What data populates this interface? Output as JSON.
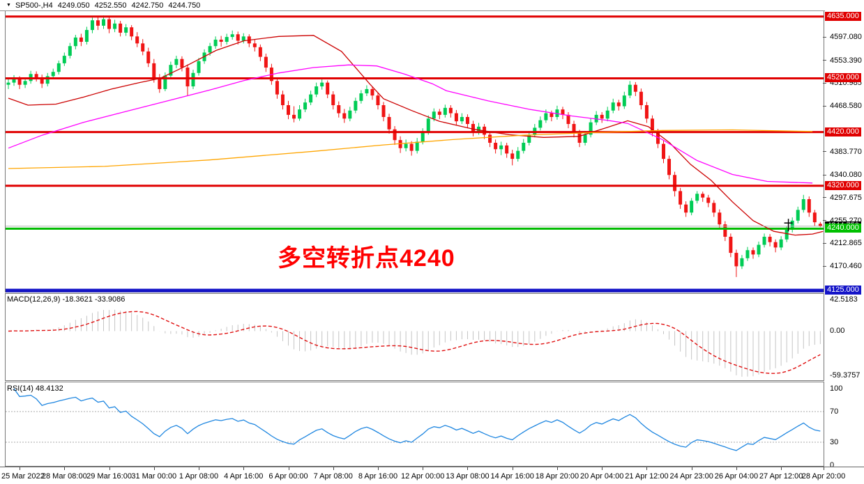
{
  "title_bar": {
    "dropdown_icon": "▼",
    "symbol_period": "SP500-,H4",
    "open": "4249.050",
    "high": "4252.550",
    "low": "4242.750",
    "close": "4244.750"
  },
  "annotation": {
    "text": "多空转折点4240",
    "color": "#FF0000"
  },
  "price_axis": {
    "plain_labels": [
      {
        "text": "4597.080",
        "price": 4597.08
      },
      {
        "text": "4553.390",
        "price": 4553.39
      },
      {
        "text": "4510.985",
        "price": 4510.985
      },
      {
        "text": "4468.580",
        "price": 4468.58
      },
      {
        "text": "4383.770",
        "price": 4383.77
      },
      {
        "text": "4340.080",
        "price": 4340.08
      },
      {
        "text": "4297.675",
        "price": 4297.675
      },
      {
        "text": "4255.270",
        "price": 4255.27
      },
      {
        "text": "4212.865",
        "price": 4212.865
      },
      {
        "text": "4170.460",
        "price": 4170.46
      }
    ],
    "marker_labels": [
      {
        "text": "4244.750",
        "price": 4244.75,
        "bg": "#000000"
      },
      {
        "text": "4635.000",
        "price": 4635,
        "bg": "#E00000"
      },
      {
        "text": "4520.000",
        "price": 4520,
        "bg": "#E00000"
      },
      {
        "text": "4420.000",
        "price": 4420,
        "bg": "#E00000"
      },
      {
        "text": "4320.000",
        "price": 4320,
        "bg": "#E00000"
      },
      {
        "text": "4240.000",
        "price": 4240,
        "bg": "#00C000"
      },
      {
        "text": "4125.000",
        "price": 4125,
        "bg": "#1414C8"
      }
    ]
  },
  "indicators": {
    "macd": {
      "label": "MACD(12,26,9) -18.3621 -33.9086",
      "fast": 12,
      "slow": 26,
      "signal": 9,
      "value": -18.3621,
      "signal_value": -33.9086,
      "axis_labels": [
        {
          "text": "42.5183",
          "value": 42.5183
        },
        {
          "text": "0.00",
          "value": 0
        },
        {
          "text": "-59.3757",
          "value": -59.3757
        }
      ],
      "ymax": 42.5183,
      "ymin": -59.3757,
      "hist_color": "#C4C4C4",
      "signal_color": "#E01010"
    },
    "rsi": {
      "label": "RSI(14) 48.4132",
      "period": 14,
      "value": 48.4132,
      "axis_labels": [
        {
          "text": "100",
          "value": 100
        },
        {
          "text": "70",
          "value": 70
        },
        {
          "text": "30",
          "value": 30
        },
        {
          "text": "0",
          "value": 0
        }
      ],
      "levels": [
        70,
        30
      ],
      "line_color": "#1E86E0",
      "level_color": "#A8A8A8"
    }
  },
  "time_axis": {
    "labels": [
      {
        "text": "25 Mar 2022",
        "bar": 2
      },
      {
        "text": "28 Mar 08:00",
        "bar": 10
      },
      {
        "text": "29 Mar 16:00",
        "bar": 18
      },
      {
        "text": "31 Mar 00:00",
        "bar": 26
      },
      {
        "text": "1 Apr 08:00",
        "bar": 34
      },
      {
        "text": "4 Apr 16:00",
        "bar": 42
      },
      {
        "text": "6 Apr 00:00",
        "bar": 50
      },
      {
        "text": "7 Apr 08:00",
        "bar": 58
      },
      {
        "text": "8 Apr 16:00",
        "bar": 66
      },
      {
        "text": "12 Apr 00:00",
        "bar": 74
      },
      {
        "text": "13 Apr 08:00",
        "bar": 82
      },
      {
        "text": "14 Apr 16:00",
        "bar": 90
      },
      {
        "text": "18 Apr 20:00",
        "bar": 98
      },
      {
        "text": "20 Apr 04:00",
        "bar": 106
      },
      {
        "text": "21 Apr 12:00",
        "bar": 114
      },
      {
        "text": "24 Apr 23:00",
        "bar": 122
      },
      {
        "text": "26 Apr 04:00",
        "bar": 130
      },
      {
        "text": "27 Apr 12:00",
        "bar": 138
      },
      {
        "text": "28 Apr 20:00",
        "bar": 146
      }
    ]
  },
  "chart_data": {
    "type": "candlestick",
    "symbol": "SP500-",
    "timeframe": "H4",
    "ylim": [
      4122.5,
      4645.1
    ],
    "bull_color": "#00CC55",
    "bear_color": "#F01414",
    "current_price": 4244.75,
    "current_price_line_color": "#B4B4B4",
    "cross_marker": {
      "bar": 139.3,
      "price": 4248
    },
    "hlines": [
      {
        "price": 4635,
        "color": "#E00000",
        "width": 3
      },
      {
        "price": 4520,
        "color": "#E00000",
        "width": 3
      },
      {
        "price": 4420,
        "color": "#E00000",
        "width": 3
      },
      {
        "price": 4320,
        "color": "#E00000",
        "width": 3
      },
      {
        "price": 4240,
        "color": "#00BB00",
        "width": 3
      },
      {
        "price": 4125,
        "color": "#1414C8",
        "width": 5
      }
    ],
    "candles": [
      [
        4508,
        4520,
        4500,
        4512
      ],
      [
        4512,
        4526,
        4506,
        4520
      ],
      [
        4520,
        4524,
        4500,
        4508
      ],
      [
        4508,
        4521,
        4502,
        4515
      ],
      [
        4515,
        4534,
        4510,
        4528
      ],
      [
        4528,
        4533,
        4514,
        4522
      ],
      [
        4522,
        4527,
        4502,
        4510
      ],
      [
        4510,
        4530,
        4505,
        4524
      ],
      [
        4524,
        4538,
        4518,
        4532
      ],
      [
        4532,
        4553,
        4527,
        4548
      ],
      [
        4548,
        4568,
        4543,
        4562
      ],
      [
        4562,
        4586,
        4557,
        4580
      ],
      [
        4580,
        4601,
        4574,
        4596
      ],
      [
        4596,
        4603,
        4580,
        4588
      ],
      [
        4588,
        4616,
        4583,
        4610
      ],
      [
        4610,
        4633,
        4604,
        4628
      ],
      [
        4628,
        4634,
        4610,
        4618
      ],
      [
        4618,
        4637,
        4612,
        4630
      ],
      [
        4630,
        4635,
        4604,
        4612
      ],
      [
        4612,
        4629,
        4606,
        4622
      ],
      [
        4622,
        4627,
        4598,
        4605
      ],
      [
        4605,
        4621,
        4599,
        4615
      ],
      [
        4615,
        4619,
        4591,
        4598
      ],
      [
        4598,
        4606,
        4578,
        4585
      ],
      [
        4585,
        4593,
        4563,
        4570
      ],
      [
        4570,
        4577,
        4541,
        4548
      ],
      [
        4548,
        4556,
        4512,
        4520
      ],
      [
        4520,
        4528,
        4493,
        4500
      ],
      [
        4500,
        4531,
        4496,
        4525
      ],
      [
        4525,
        4551,
        4520,
        4545
      ],
      [
        4545,
        4562,
        4539,
        4556
      ],
      [
        4556,
        4561,
        4533,
        4540
      ],
      [
        4540,
        4546,
        4487,
        4505
      ],
      [
        4505,
        4536,
        4500,
        4530
      ],
      [
        4530,
        4558,
        4525,
        4552
      ],
      [
        4552,
        4574,
        4547,
        4568
      ],
      [
        4568,
        4586,
        4562,
        4580
      ],
      [
        4580,
        4598,
        4575,
        4592
      ],
      [
        4592,
        4599,
        4579,
        4588
      ],
      [
        4588,
        4603,
        4583,
        4597
      ],
      [
        4597,
        4609,
        4592,
        4602
      ],
      [
        4602,
        4607,
        4583,
        4590
      ],
      [
        4590,
        4604,
        4585,
        4598
      ],
      [
        4598,
        4602,
        4578,
        4585
      ],
      [
        4585,
        4592,
        4570,
        4578
      ],
      [
        4578,
        4583,
        4552,
        4560
      ],
      [
        4560,
        4566,
        4532,
        4540
      ],
      [
        4540,
        4547,
        4508,
        4515
      ],
      [
        4515,
        4521,
        4482,
        4490
      ],
      [
        4490,
        4497,
        4462,
        4470
      ],
      [
        4470,
        4478,
        4444,
        4452
      ],
      [
        4452,
        4468,
        4438,
        4445
      ],
      [
        4445,
        4470,
        4441,
        4462
      ],
      [
        4462,
        4482,
        4457,
        4475
      ],
      [
        4475,
        4497,
        4470,
        4490
      ],
      [
        4490,
        4512,
        4485,
        4505
      ],
      [
        4505,
        4519,
        4499,
        4512
      ],
      [
        4512,
        4516,
        4483,
        4490
      ],
      [
        4490,
        4496,
        4462,
        4470
      ],
      [
        4470,
        4477,
        4447,
        4455
      ],
      [
        4455,
        4463,
        4437,
        4445
      ],
      [
        4445,
        4467,
        4440,
        4460
      ],
      [
        4460,
        4484,
        4455,
        4478
      ],
      [
        4478,
        4498,
        4473,
        4492
      ],
      [
        4492,
        4507,
        4487,
        4500
      ],
      [
        4500,
        4505,
        4480,
        4488
      ],
      [
        4488,
        4493,
        4462,
        4470
      ],
      [
        4470,
        4476,
        4440,
        4448
      ],
      [
        4448,
        4454,
        4417,
        4425
      ],
      [
        4425,
        4431,
        4396,
        4405
      ],
      [
        4405,
        4412,
        4381,
        4390
      ],
      [
        4390,
        4406,
        4384,
        4398
      ],
      [
        4398,
        4403,
        4376,
        4385
      ],
      [
        4385,
        4409,
        4380,
        4402
      ],
      [
        4402,
        4427,
        4397,
        4420
      ],
      [
        4420,
        4451,
        4415,
        4445
      ],
      [
        4445,
        4464,
        4440,
        4458
      ],
      [
        4458,
        4463,
        4444,
        4452
      ],
      [
        4452,
        4471,
        4447,
        4465
      ],
      [
        4465,
        4470,
        4447,
        4455
      ],
      [
        4455,
        4461,
        4432,
        4440
      ],
      [
        4440,
        4455,
        4435,
        4448
      ],
      [
        4448,
        4453,
        4427,
        4435
      ],
      [
        4435,
        4441,
        4412,
        4420
      ],
      [
        4420,
        4437,
        4415,
        4430
      ],
      [
        4430,
        4435,
        4407,
        4415
      ],
      [
        4415,
        4421,
        4392,
        4400
      ],
      [
        4400,
        4406,
        4380,
        4388
      ],
      [
        4388,
        4402,
        4377,
        4395
      ],
      [
        4395,
        4400,
        4372,
        4380
      ],
      [
        4380,
        4387,
        4358,
        4370
      ],
      [
        4370,
        4392,
        4365,
        4385
      ],
      [
        4385,
        4407,
        4380,
        4400
      ],
      [
        4400,
        4422,
        4395,
        4415
      ],
      [
        4415,
        4435,
        4410,
        4428
      ],
      [
        4428,
        4449,
        4423,
        4442
      ],
      [
        4442,
        4462,
        4437,
        4455
      ],
      [
        4455,
        4460,
        4440,
        4448
      ],
      [
        4448,
        4469,
        4443,
        4462
      ],
      [
        4462,
        4467,
        4444,
        4452
      ],
      [
        4452,
        4457,
        4427,
        4435
      ],
      [
        4435,
        4441,
        4410,
        4418
      ],
      [
        4418,
        4424,
        4392,
        4400
      ],
      [
        4400,
        4422,
        4395,
        4415
      ],
      [
        4415,
        4445,
        4410,
        4438
      ],
      [
        4438,
        4459,
        4433,
        4452
      ],
      [
        4452,
        4457,
        4437,
        4445
      ],
      [
        4445,
        4467,
        4440,
        4460
      ],
      [
        4460,
        4482,
        4455,
        4475
      ],
      [
        4475,
        4480,
        4460,
        4468
      ],
      [
        4468,
        4495,
        4463,
        4488
      ],
      [
        4488,
        4515,
        4483,
        4508
      ],
      [
        4508,
        4513,
        4487,
        4495
      ],
      [
        4495,
        4501,
        4462,
        4470
      ],
      [
        4470,
        4476,
        4437,
        4445
      ],
      [
        4445,
        4451,
        4412,
        4420
      ],
      [
        4420,
        4426,
        4390,
        4398
      ],
      [
        4398,
        4404,
        4362,
        4370
      ],
      [
        4370,
        4376,
        4332,
        4340
      ],
      [
        4340,
        4346,
        4300,
        4310
      ],
      [
        4310,
        4316,
        4277,
        4285
      ],
      [
        4285,
        4291,
        4262,
        4270
      ],
      [
        4270,
        4297,
        4265,
        4292
      ],
      [
        4292,
        4310,
        4287,
        4305
      ],
      [
        4305,
        4309,
        4290,
        4298
      ],
      [
        4298,
        4303,
        4280,
        4288
      ],
      [
        4288,
        4293,
        4262,
        4270
      ],
      [
        4270,
        4276,
        4240,
        4248
      ],
      [
        4248,
        4254,
        4217,
        4225
      ],
      [
        4225,
        4231,
        4187,
        4195
      ],
      [
        4195,
        4201,
        4150,
        4170
      ],
      [
        4170,
        4191,
        4165,
        4185
      ],
      [
        4185,
        4206,
        4180,
        4200
      ],
      [
        4200,
        4205,
        4184,
        4192
      ],
      [
        4192,
        4216,
        4187,
        4210
      ],
      [
        4210,
        4231,
        4205,
        4225
      ],
      [
        4225,
        4230,
        4207,
        4215
      ],
      [
        4215,
        4220,
        4196,
        4205
      ],
      [
        4205,
        4226,
        4200,
        4220
      ],
      [
        4220,
        4244,
        4215,
        4238
      ],
      [
        4238,
        4261,
        4233,
        4255
      ],
      [
        4255,
        4281,
        4250,
        4275
      ],
      [
        4275,
        4303,
        4270,
        4295
      ],
      [
        4295,
        4300,
        4262,
        4270
      ],
      [
        4270,
        4275,
        4245,
        4252
      ],
      [
        4249.05,
        4252.55,
        4242.75,
        4244.75
      ]
    ],
    "moving_averages": [
      {
        "name": "ma-fast-red",
        "color": "#CC0000",
        "points": [
          [
            0,
            4483
          ],
          [
            3.5,
            4470
          ],
          [
            8.5,
            4472
          ],
          [
            13.4,
            4485
          ],
          [
            18.4,
            4500
          ],
          [
            23.4,
            4512
          ],
          [
            27.1,
            4520
          ],
          [
            32.1,
            4545
          ],
          [
            37.1,
            4572
          ],
          [
            42.1,
            4590
          ],
          [
            48.3,
            4598
          ],
          [
            54.5,
            4600
          ],
          [
            59.5,
            4570
          ],
          [
            64.5,
            4510
          ],
          [
            67,
            4482
          ],
          [
            72,
            4460
          ],
          [
            77,
            4440
          ],
          [
            83.2,
            4425
          ],
          [
            89.4,
            4415
          ],
          [
            95.6,
            4410
          ],
          [
            101.9,
            4412
          ],
          [
            106.8,
            4428
          ],
          [
            110.6,
            4441
          ],
          [
            114.3,
            4430
          ],
          [
            118.1,
            4400
          ],
          [
            121.8,
            4360
          ],
          [
            125.5,
            4330
          ],
          [
            129.3,
            4290
          ],
          [
            133,
            4255
          ],
          [
            136.7,
            4235
          ],
          [
            140.5,
            4228
          ],
          [
            143.6,
            4230
          ],
          [
            145.5,
            4235
          ]
        ]
      },
      {
        "name": "ma-mid-magenta",
        "color": "#FF00FF",
        "points": [
          [
            0,
            4390
          ],
          [
            6,
            4414
          ],
          [
            13.4,
            4438
          ],
          [
            20.9,
            4458
          ],
          [
            28.4,
            4478
          ],
          [
            35.9,
            4498
          ],
          [
            42.1,
            4516
          ],
          [
            48.3,
            4530
          ],
          [
            54.5,
            4540
          ],
          [
            60.8,
            4545
          ],
          [
            65.8,
            4543
          ],
          [
            70.7,
            4528
          ],
          [
            75.7,
            4510
          ],
          [
            78.2,
            4497
          ],
          [
            85.7,
            4478
          ],
          [
            93.2,
            4462
          ],
          [
            100.6,
            4450
          ],
          [
            106.8,
            4442
          ],
          [
            110.6,
            4436
          ],
          [
            116.8,
            4406
          ],
          [
            123,
            4367
          ],
          [
            129.3,
            4341
          ],
          [
            135.5,
            4328
          ],
          [
            143.6,
            4325
          ]
        ]
      },
      {
        "name": "ma-slow-orange",
        "color": "#FFA500",
        "points": [
          [
            0,
            4352
          ],
          [
            17.2,
            4356
          ],
          [
            35.9,
            4368
          ],
          [
            54.5,
            4384
          ],
          [
            67,
            4396
          ],
          [
            79.4,
            4406
          ],
          [
            91.9,
            4414
          ],
          [
            104.4,
            4419
          ],
          [
            116.8,
            4423
          ],
          [
            129.3,
            4424
          ],
          [
            143.6,
            4421
          ]
        ]
      }
    ]
  }
}
